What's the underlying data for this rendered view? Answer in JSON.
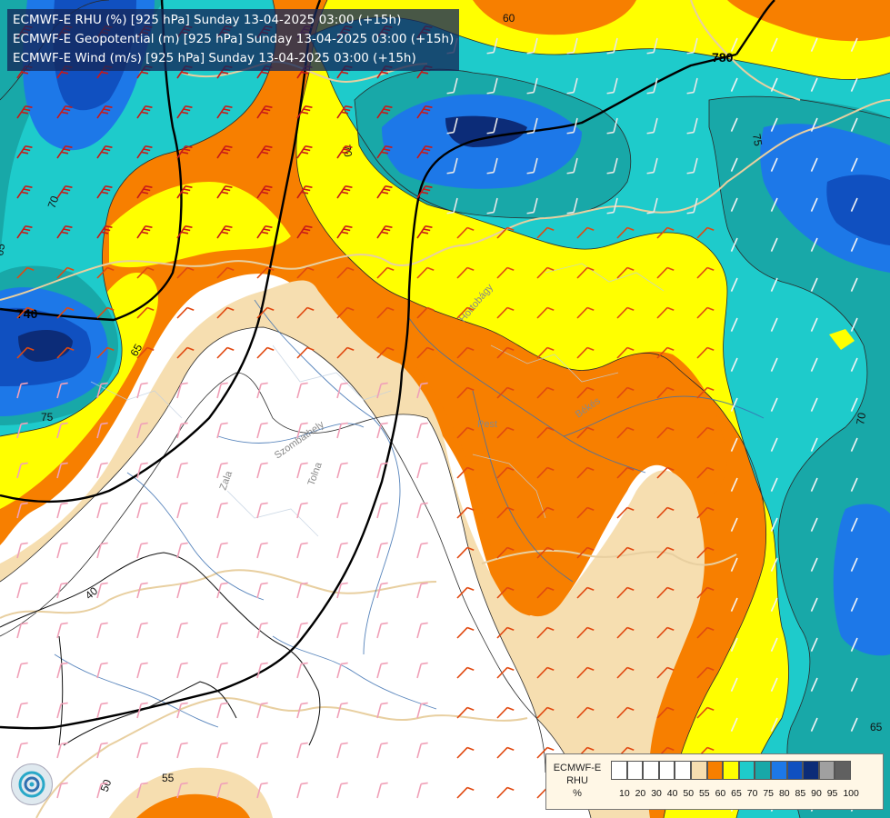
{
  "titles": [
    "ECMWF-E RHU (%) [925 hPa] Sunday 13-04-2025 03:00 (+15h)",
    "ECMWF-E Geopotential (m) [925 hPa] Sunday 13-04-2025 03:00 (+15h)",
    "ECMWF-E Wind (m/s) [925 hPa] Sunday 13-04-2025 03:00 (+15h)"
  ],
  "legend": {
    "name_lines": [
      "ECMWF-E",
      "RHU",
      "%"
    ],
    "ticks": [
      "10",
      "20",
      "30",
      "40",
      "50",
      "55",
      "60",
      "65",
      "70",
      "75",
      "80",
      "85",
      "90",
      "95",
      "100"
    ],
    "colors": [
      "#ffffff",
      "#ffffff",
      "#ffffff",
      "#ffffff",
      "#ffffff",
      "#f6deb0",
      "#f77f00",
      "#ffff00",
      "#1ecbcb",
      "#18a8a8",
      "#1d78e8",
      "#1050c0",
      "#0c2c78",
      "#a0a0a0",
      "#606060"
    ]
  },
  "contour_labels": {
    "geopotential": [
      "780",
      "740"
    ],
    "rhu": [
      "60",
      "70",
      "75",
      "65",
      "70",
      "65",
      "75",
      "70",
      "65",
      "40",
      "50",
      "55"
    ]
  },
  "place_labels": [
    "Hortobágy",
    "Pest",
    "Békés",
    "Szombathely",
    "Zala",
    "Tolna"
  ],
  "colors": {
    "rhu_40": "#ffffff",
    "rhu_50": "#f6deb0",
    "rhu_55": "#f77f00",
    "rhu_60": "#ffff00",
    "rhu_65": "#1ecbcb",
    "rhu_70": "#18a8a8",
    "rhu_75": "#1d78e8",
    "rhu_80": "#1050c0",
    "rhu_85": "#0c2c78",
    "geopotential_line": "#000000",
    "border_line": "#e8cfa0",
    "river_line": "#3a6fb0"
  }
}
